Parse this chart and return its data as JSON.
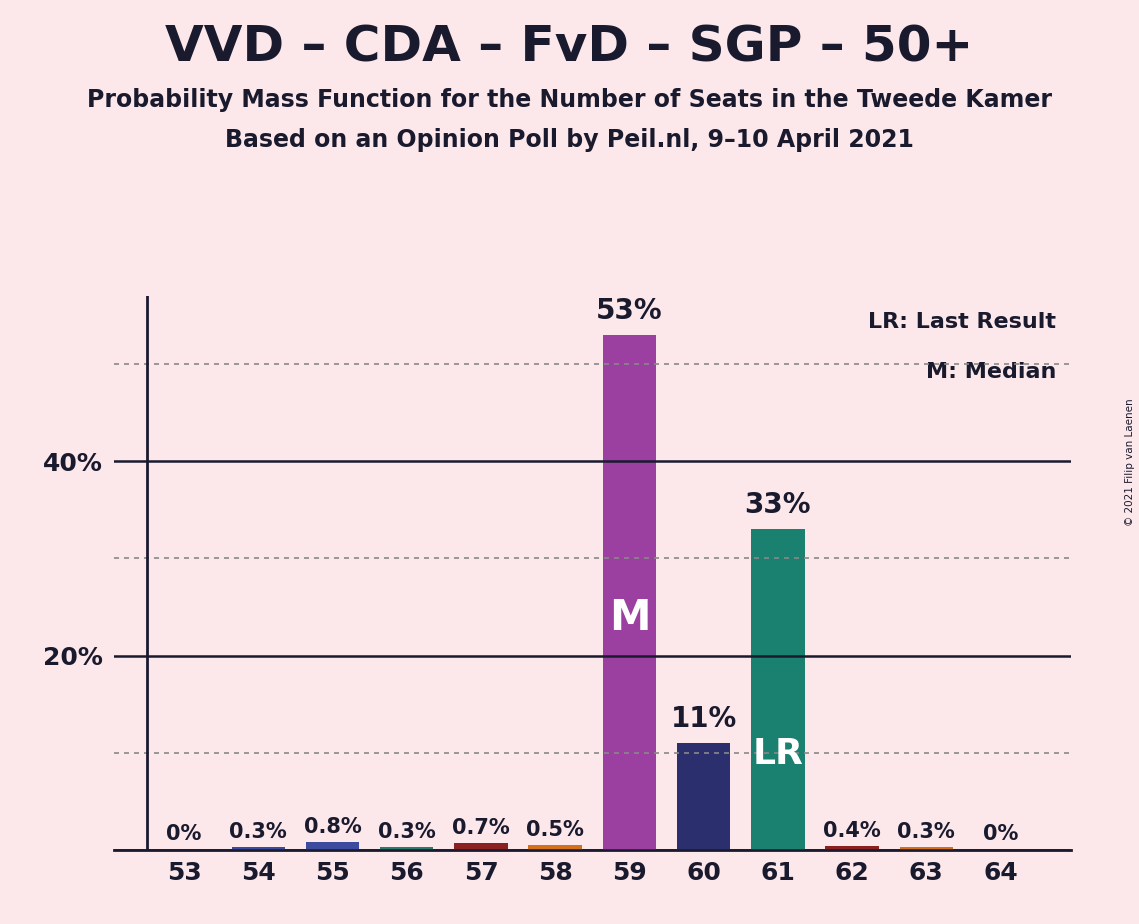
{
  "title": "VVD – CDA – FvD – SGP – 50+",
  "subtitle1": "Probability Mass Function for the Number of Seats in the Tweede Kamer",
  "subtitle2": "Based on an Opinion Poll by Peil.nl, 9–10 April 2021",
  "copyright": "© 2021 Filip van Laenen",
  "categories": [
    53,
    54,
    55,
    56,
    57,
    58,
    59,
    60,
    61,
    62,
    63,
    64
  ],
  "values": [
    0.0,
    0.3,
    0.8,
    0.3,
    0.7,
    0.5,
    53.0,
    11.0,
    33.0,
    0.4,
    0.3,
    0.0
  ],
  "bar_colors": [
    "#e8b4bc",
    "#3d4b9e",
    "#3d4b9e",
    "#2d7a6a",
    "#8b2020",
    "#d4701c",
    "#9b3fa0",
    "#2b2f6e",
    "#1a8070",
    "#8b2020",
    "#d4701c",
    "#e8b4bc"
  ],
  "median_bar_idx": 6,
  "lr_bar_idx": 8,
  "background_color": "#fce8ea",
  "solid_line_color": "#1a1a2e",
  "dotted_line_color": "#888888",
  "ylim": [
    0,
    57
  ],
  "solid_yticks": [
    0,
    20,
    40
  ],
  "dotted_yticks": [
    10,
    30,
    50
  ],
  "ylabel_ticks": [
    20,
    40
  ],
  "legend_lr": "LR: Last Result",
  "legend_m": "M: Median",
  "title_fontsize": 36,
  "subtitle_fontsize": 17,
  "tick_fontsize": 18,
  "bar_label_fontsize_small": 15,
  "bar_label_fontsize_large": 20,
  "inside_label_fontsize": 30
}
